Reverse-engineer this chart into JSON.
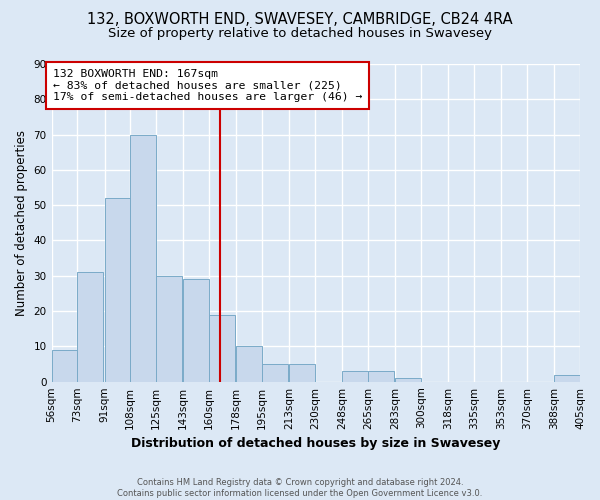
{
  "title": "132, BOXWORTH END, SWAVESEY, CAMBRIDGE, CB24 4RA",
  "subtitle": "Size of property relative to detached houses in Swavesey",
  "xlabel": "Distribution of detached houses by size in Swavesey",
  "ylabel": "Number of detached properties",
  "footer_lines": [
    "Contains HM Land Registry data © Crown copyright and database right 2024.",
    "Contains public sector information licensed under the Open Government Licence v3.0."
  ],
  "bar_edges": [
    56,
    73,
    91,
    108,
    125,
    143,
    160,
    178,
    195,
    213,
    230,
    248,
    265,
    283,
    300,
    318,
    335,
    353,
    370,
    388,
    405
  ],
  "bar_heights": [
    9,
    31,
    52,
    70,
    30,
    29,
    19,
    10,
    5,
    5,
    0,
    3,
    3,
    1,
    0,
    0,
    0,
    0,
    0,
    2
  ],
  "bar_color": "#c8d8ec",
  "bar_edge_color": "#7aaac8",
  "reference_line_x": 167,
  "reference_line_color": "#cc0000",
  "annotation_text": "132 BOXWORTH END: 167sqm\n← 83% of detached houses are smaller (225)\n17% of semi-detached houses are larger (46) →",
  "annotation_box_edge_color": "#cc0000",
  "annotation_box_face_color": "#ffffff",
  "ylim": [
    0,
    90
  ],
  "yticks": [
    0,
    10,
    20,
    30,
    40,
    50,
    60,
    70,
    80,
    90
  ],
  "background_color": "#dce8f5",
  "axes_background_color": "#dce8f5",
  "grid_color": "#ffffff",
  "tick_label_size": 7.5,
  "title_fontsize": 10.5,
  "subtitle_fontsize": 9.5
}
